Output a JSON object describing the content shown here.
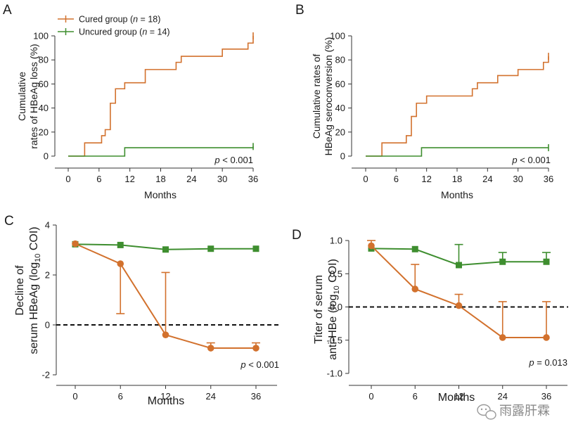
{
  "colors": {
    "cured": "#d2712d",
    "uncured": "#3e8e2f",
    "axis": "#333333",
    "dash": "#111111"
  },
  "legend": {
    "cured": {
      "prefix": "Cured group (",
      "n_label": "n",
      "suffix": " = 18)"
    },
    "uncured": {
      "prefix": "Uncured group (",
      "n_label": "n",
      "suffix": " = 14)"
    }
  },
  "watermark": {
    "text": "雨露肝霖",
    "icon": "wechat-chat-bubble-icon"
  },
  "chart_data": [
    {
      "id": "A",
      "type": "line",
      "step": true,
      "title": "",
      "panel_letter": "A",
      "xlabel": "Months",
      "ylabel": [
        "Cumulative",
        "rates of HBeAg loss (%)"
      ],
      "xlim": [
        0,
        36
      ],
      "ylim": [
        0,
        100
      ],
      "xticks": [
        0,
        6,
        12,
        18,
        24,
        30,
        36
      ],
      "yticks": [
        0,
        20,
        40,
        60,
        80,
        100
      ],
      "annotation": {
        "italic": "p",
        "text": " < 0.001"
      },
      "series": [
        {
          "name": "Cured group",
          "color_key": "cured",
          "x": [
            0,
            3.2,
            6.5,
            7.2,
            8.2,
            9.2,
            11,
            15,
            21,
            22,
            30,
            35,
            36
          ],
          "y": [
            0,
            11,
            17,
            22,
            44,
            56,
            61,
            72,
            78,
            83,
            89,
            94,
            100
          ]
        },
        {
          "name": "Uncured group",
          "color_key": "uncured",
          "x": [
            0,
            11,
            36
          ],
          "y": [
            0,
            7,
            8
          ]
        }
      ]
    },
    {
      "id": "B",
      "type": "line",
      "step": true,
      "title": "",
      "panel_letter": "B",
      "xlabel": "Months",
      "ylabel": [
        "Cumulative rates of",
        "HBeAg seroconversion (%)"
      ],
      "xlim": [
        0,
        36
      ],
      "ylim": [
        0,
        100
      ],
      "xticks": [
        0,
        6,
        12,
        18,
        24,
        30,
        36
      ],
      "yticks": [
        0,
        20,
        40,
        60,
        80,
        100
      ],
      "annotation": {
        "italic": "p",
        "text": " < 0.001"
      },
      "series": [
        {
          "name": "Cured group",
          "color_key": "cured",
          "x": [
            0,
            3.2,
            8,
            9,
            10,
            12,
            21,
            22,
            26,
            30,
            35,
            36
          ],
          "y": [
            0,
            11,
            17,
            33,
            44,
            50,
            56,
            61,
            67,
            72,
            78,
            83
          ]
        },
        {
          "name": "Uncured group",
          "color_key": "uncured",
          "x": [
            0,
            11,
            36
          ],
          "y": [
            0,
            7,
            7
          ]
        }
      ]
    },
    {
      "id": "C",
      "type": "line",
      "title": "",
      "panel_letter": "C",
      "xlabel": "Months",
      "ylabel_line1": "Decline of",
      "ylabel_line2_parts": [
        "serum HBeAg (log",
        "10",
        " COI)"
      ],
      "categories": [
        "0",
        "6",
        "12",
        "24",
        "36"
      ],
      "ylim": [
        -2,
        4
      ],
      "yticks": [
        -2,
        0,
        2,
        4
      ],
      "reference_line": 0,
      "annotation": {
        "italic": "p",
        "text": " < 0.001"
      },
      "series": [
        {
          "name": "Uncured group",
          "color_key": "uncured",
          "marker": "square",
          "values": [
            3.23,
            3.2,
            3.02,
            3.05,
            3.05
          ]
        },
        {
          "name": "Cured group",
          "color_key": "cured",
          "marker": "circle",
          "values": [
            3.25,
            2.45,
            -0.4,
            -0.93,
            -0.93
          ],
          "error_down": [
            null,
            0.45,
            null,
            null,
            null
          ],
          "error_up": [
            null,
            null,
            2.1,
            -0.72,
            -0.72
          ]
        }
      ]
    },
    {
      "id": "D",
      "type": "line",
      "title": "",
      "panel_letter": "D",
      "xlabel": "Months",
      "ylabel_line1": "Titer of serum",
      "ylabel_line2_parts": [
        "anti-HBe (log",
        "10",
        " COI)"
      ],
      "categories": [
        "0",
        "6",
        "12",
        "24",
        "36"
      ],
      "ylim": [
        -1.0,
        1.0
      ],
      "yticks": [
        -1.0,
        -0.5,
        0.0,
        0.5,
        1.0
      ],
      "ytick_labels": [
        "-1.0",
        "-0.5",
        "0.0",
        "0.5",
        "1.0"
      ],
      "reference_line": 0,
      "annotation": {
        "italic": "p",
        "text": " = 0.013"
      },
      "series": [
        {
          "name": "Uncured group",
          "color_key": "uncured",
          "marker": "square",
          "values": [
            0.88,
            0.87,
            0.63,
            0.68,
            0.68
          ],
          "error_up": [
            null,
            null,
            0.94,
            0.82,
            0.82
          ]
        },
        {
          "name": "Cured group",
          "color_key": "cured",
          "marker": "circle",
          "values": [
            0.92,
            0.27,
            0.02,
            -0.46,
            -0.46
          ],
          "error_up": [
            1.0,
            0.64,
            0.19,
            0.08,
            0.08
          ]
        }
      ]
    }
  ]
}
